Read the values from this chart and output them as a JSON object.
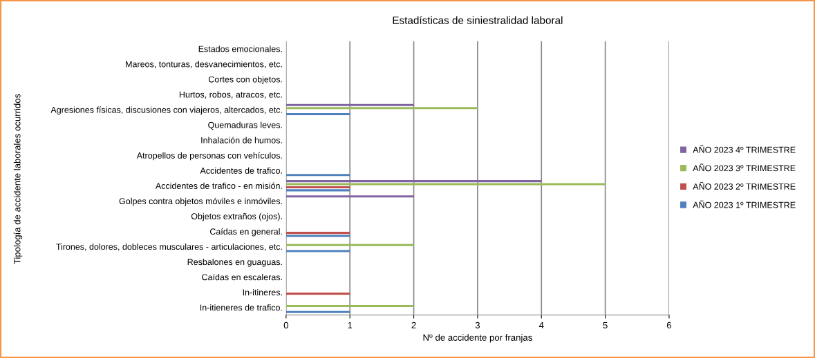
{
  "chart_data": {
    "type": "bar",
    "orientation": "horizontal",
    "title": "Estadísticas de siniestralidad laboral",
    "xlabel": "Nº de accidente por franjas",
    "ylabel": "Tipología de accidente laborales ocurridos",
    "categories": [
      "Estados emocionales.",
      "Mareos, tonturas, desvanecimientos, etc.",
      "Cortes con objetos.",
      "Hurtos, robos, atracos, etc.",
      "Agresiones físicas, discusiones con viajeros, altercados, etc.",
      "Quemaduras leves.",
      "Inhalación de humos.",
      "Atropellos de personas con vehículos.",
      "Accidentes de trafico.",
      "Accidentes de trafico - en misión.",
      "Golpes contra objetos móviles e inmóviles.",
      "Objetos extraños (ojos).",
      "Caídas en general.",
      "Tirones, dolores, dobleces musculares - articulaciones, etc.",
      "Resbalones en guaguas.",
      "Caídas en escaleras.",
      "In-itineres.",
      "In-itieneres de trafico."
    ],
    "series": [
      {
        "name": "AÑO 2023 1º TRIMESTRE",
        "color": "#4f81bd",
        "values": [
          0,
          0,
          0,
          0,
          1,
          0,
          0,
          0,
          1,
          1,
          0,
          0,
          1,
          1,
          0,
          0,
          0,
          1
        ]
      },
      {
        "name": "AÑO 2023 2º TRIMESTRE",
        "color": "#c0504d",
        "values": [
          0,
          0,
          0,
          0,
          0,
          0,
          0,
          0,
          0,
          1,
          0,
          0,
          1,
          0,
          0,
          0,
          1,
          0
        ]
      },
      {
        "name": "AÑO 2023 3º TRIMESTRE",
        "color": "#9bbb59",
        "values": [
          0,
          0,
          0,
          0,
          3,
          0,
          0,
          0,
          0,
          5,
          0,
          0,
          0,
          2,
          0,
          0,
          0,
          2
        ]
      },
      {
        "name": "AÑO 2023 4º TRIMESTRE",
        "color": "#8064a2",
        "values": [
          0,
          0,
          0,
          0,
          2,
          0,
          0,
          0,
          0,
          4,
          2,
          0,
          0,
          0,
          0,
          0,
          0,
          0
        ]
      }
    ],
    "xlim": [
      0,
      6
    ],
    "xticks": [
      0,
      1,
      2,
      3,
      4,
      5,
      6
    ],
    "grid": "x",
    "legend": "right"
  }
}
